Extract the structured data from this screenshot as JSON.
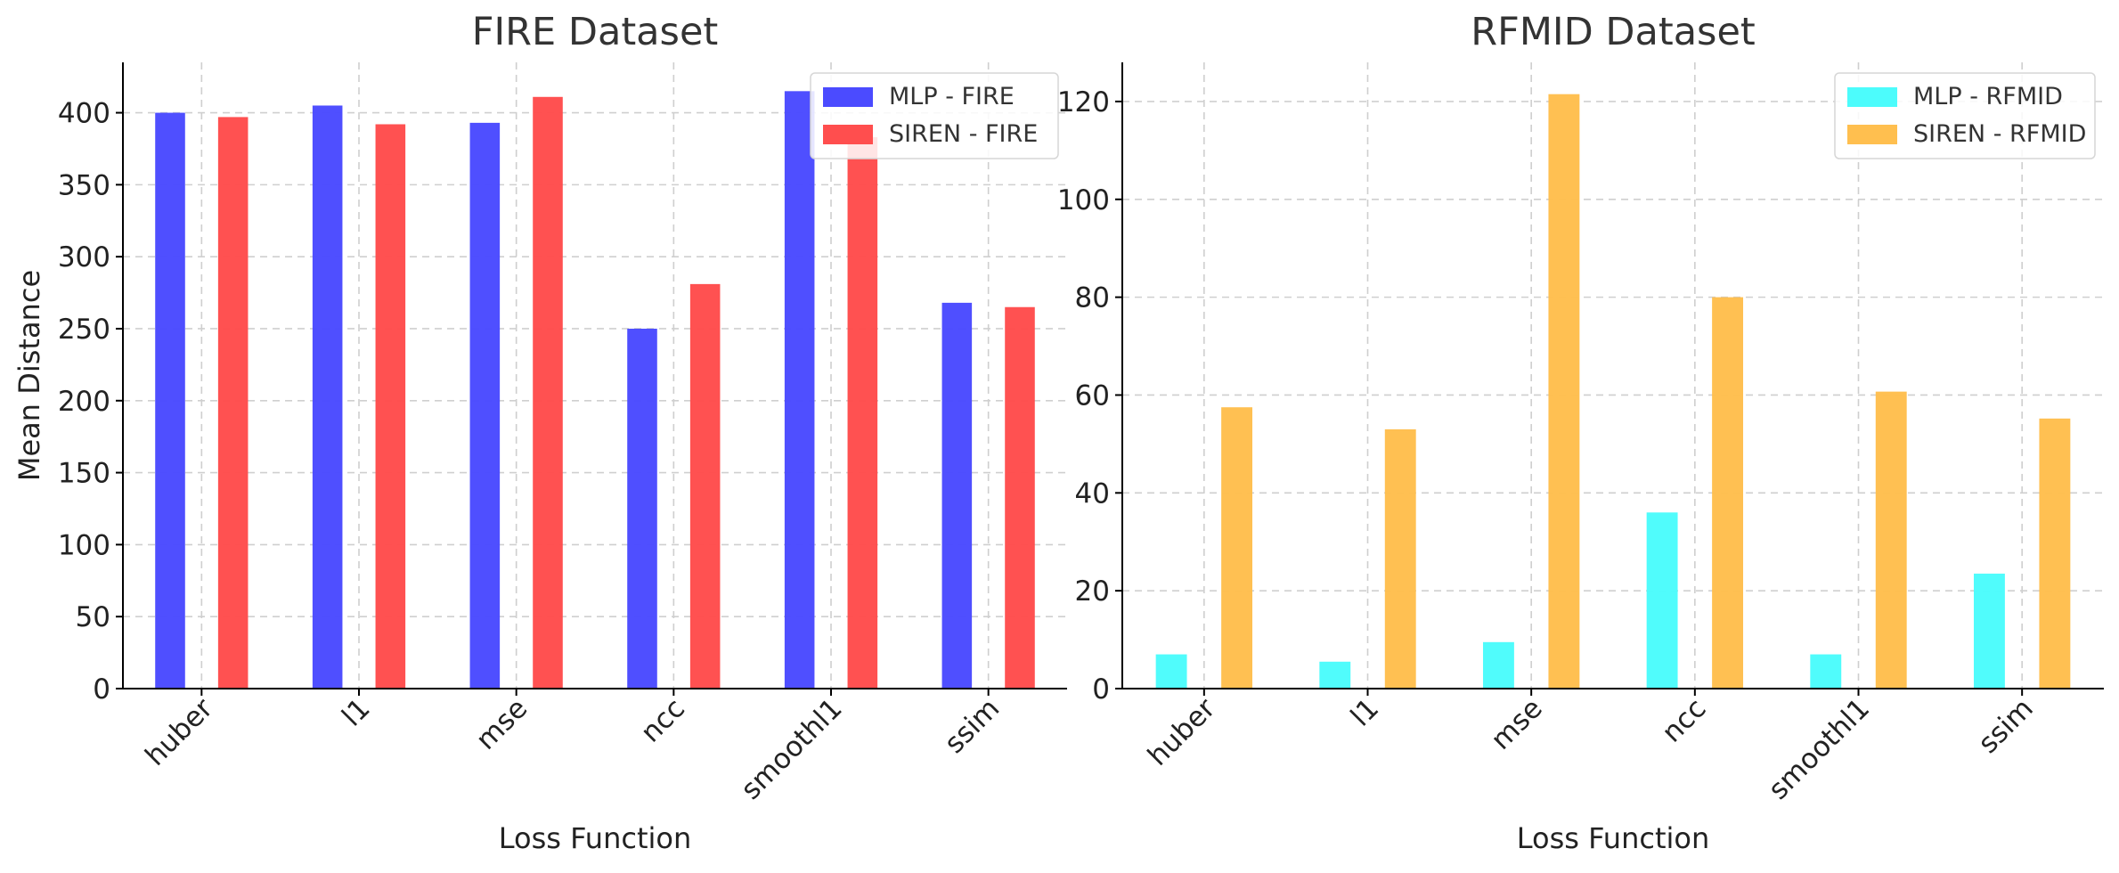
{
  "chart_data": [
    {
      "type": "bar",
      "title": "FIRE Dataset",
      "xlabel": "Loss Function",
      "ylabel": "Mean Distance",
      "categories": [
        "huber",
        "l1",
        "mse",
        "ncc",
        "smoothl1",
        "ssim"
      ],
      "ylim": [
        0,
        435
      ],
      "yticks": [
        0,
        50,
        100,
        150,
        200,
        250,
        300,
        350,
        400
      ],
      "grid": true,
      "legend_position": "top-right",
      "series": [
        {
          "name": "MLP - FIRE",
          "color": "#4b4bff",
          "values": [
            400,
            405,
            393,
            250,
            415,
            268
          ]
        },
        {
          "name": "SIREN - FIRE",
          "color": "#ff4e4e",
          "values": [
            397,
            392,
            411,
            281,
            383,
            265
          ]
        }
      ]
    },
    {
      "type": "bar",
      "title": "RFMID Dataset",
      "xlabel": "Loss Function",
      "ylabel": "",
      "categories": [
        "huber",
        "l1",
        "mse",
        "ncc",
        "smoothl1",
        "ssim"
      ],
      "ylim": [
        0,
        128
      ],
      "yticks": [
        0,
        20,
        40,
        60,
        80,
        100,
        120
      ],
      "grid": true,
      "legend_position": "top-right",
      "series": [
        {
          "name": "MLP - RFMID",
          "color": "#4cfcfc",
          "values": [
            7.0,
            5.5,
            9.5,
            36.0,
            7.0,
            23.5
          ]
        },
        {
          "name": "SIREN - RFMID",
          "color": "#ffbf4f",
          "values": [
            57.5,
            53.0,
            121.5,
            80.0,
            60.7,
            55.2
          ]
        }
      ]
    }
  ]
}
